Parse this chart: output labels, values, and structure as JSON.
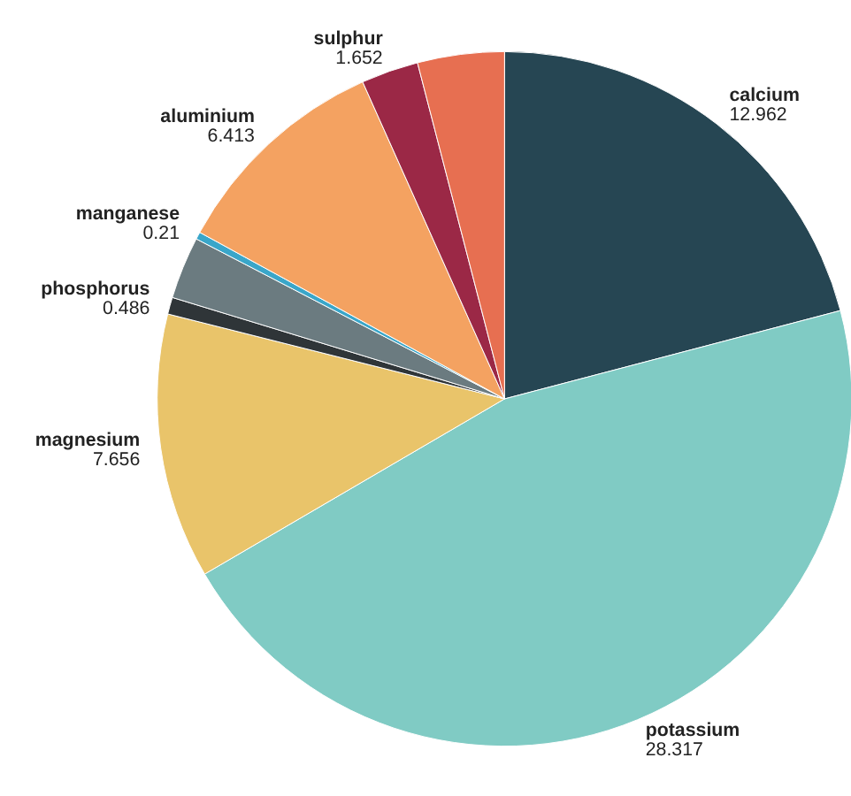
{
  "chart_data": {
    "type": "pie",
    "categories": [
      "calcium",
      "potassium",
      "magnesium",
      "phosphorus",
      null,
      "manganese",
      "aluminium",
      "sulphur",
      null
    ],
    "values": [
      12.962,
      28.317,
      7.656,
      0.486,
      1.8,
      0.21,
      6.413,
      1.652,
      2.5
    ],
    "colors": [
      "#264653",
      "#80cbc4",
      "#e9c46a",
      "#2f3538",
      "#6b7b80",
      "#3aa6c9",
      "#f4a261",
      "#9b2846",
      "#e76f51"
    ],
    "value_labels": [
      "12.962",
      "28.317",
      "7.656",
      "0.486",
      null,
      "0.21",
      "6.413",
      "1.652",
      null
    ]
  }
}
